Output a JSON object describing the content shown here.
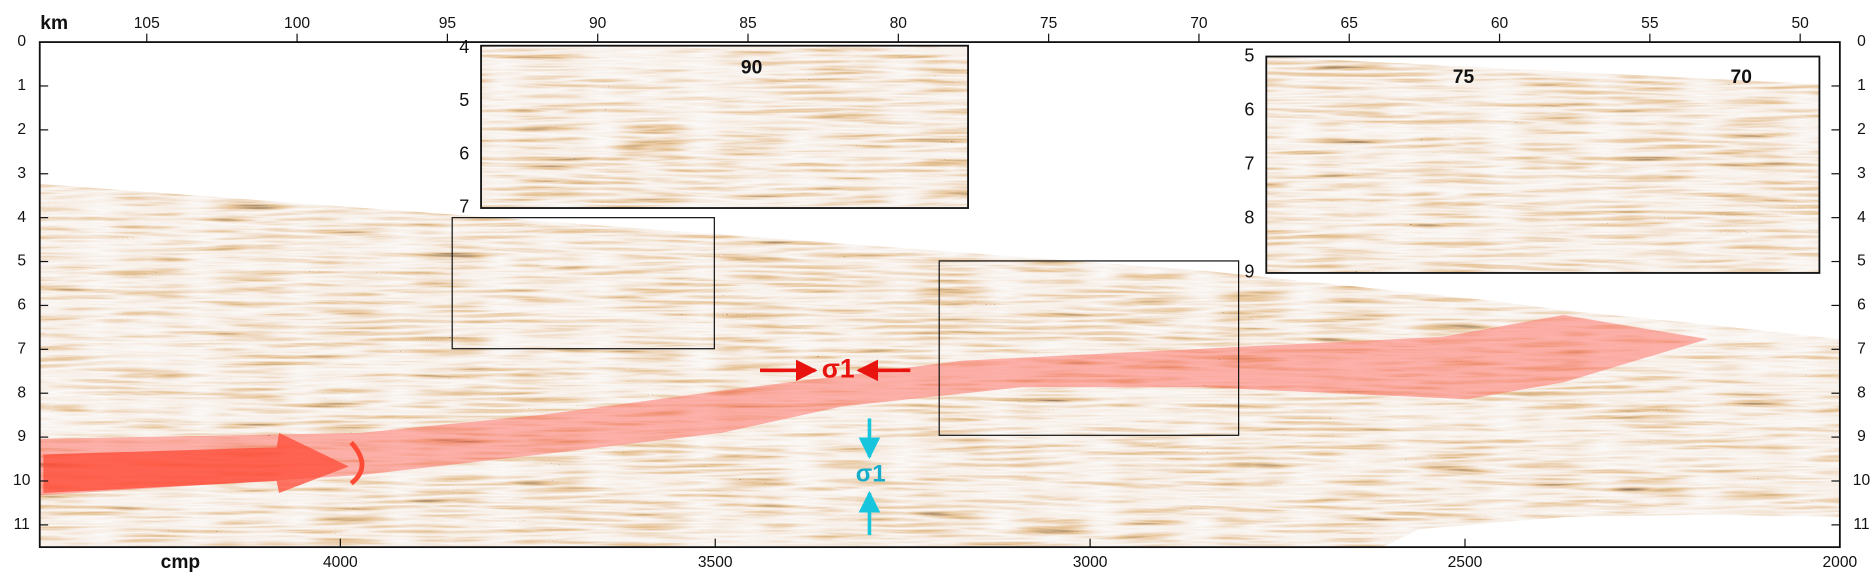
{
  "figure": {
    "top_axis": {
      "label": "km",
      "ticks": [
        105,
        100,
        95,
        90,
        85,
        80,
        75,
        70,
        65,
        60,
        55,
        50
      ]
    },
    "depth_axis": {
      "ticks": [
        0,
        1,
        2,
        3,
        4,
        5,
        6,
        7,
        8,
        9,
        10,
        11
      ]
    },
    "bottom_axis": {
      "label": "cmp",
      "ticks": [
        4000,
        3500,
        3000,
        2500,
        2000
      ]
    },
    "insets": [
      {
        "ticks": [
          4,
          5,
          6,
          7
        ],
        "labels": [
          "90"
        ]
      },
      {
        "ticks": [
          5,
          6,
          7,
          8,
          9
        ],
        "labels": [
          "75",
          "70"
        ]
      }
    ],
    "annotations": {
      "horizontal_stress": "σ1",
      "vertical_stress": "σ1"
    }
  }
}
